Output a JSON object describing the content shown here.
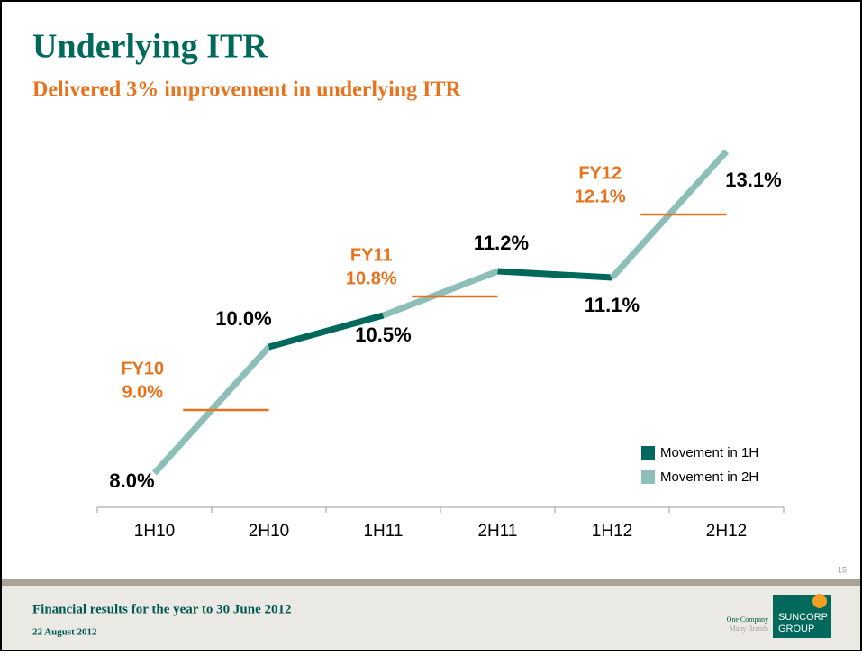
{
  "header": {
    "title": "Underlying ITR",
    "subtitle": "Delivered 3% improvement in underlying ITR"
  },
  "chart_data": {
    "type": "line",
    "categories": [
      "1H10",
      "2H10",
      "1H11",
      "2H11",
      "1H12",
      "2H12"
    ],
    "values": [
      8.0,
      10.0,
      10.5,
      11.2,
      11.1,
      13.1
    ],
    "value_labels": [
      "8.0%",
      "10.0%",
      "10.5%",
      "11.2%",
      "11.1%",
      "13.1%"
    ],
    "legend": [
      {
        "name": "Movement in 1H",
        "color": "#00695c"
      },
      {
        "name": "Movement in 2H",
        "color": "#8cbfb8"
      }
    ],
    "annotations": [
      {
        "label": "FY10",
        "value": 9.0,
        "value_label": "9.0%",
        "color": "#e8731e"
      },
      {
        "label": "FY11",
        "value": 10.8,
        "value_label": "10.8%",
        "color": "#e8731e"
      },
      {
        "label": "FY12",
        "value": 12.1,
        "value_label": "12.1%",
        "color": "#e8731e"
      }
    ]
  },
  "footer": {
    "title": "Financial results for the year to 30 June 2012",
    "date": "22 August 2012",
    "page": "15",
    "tagline": [
      "One Company",
      "Many Brands"
    ],
    "logo": [
      "SUNCORP",
      "GROUP"
    ]
  }
}
